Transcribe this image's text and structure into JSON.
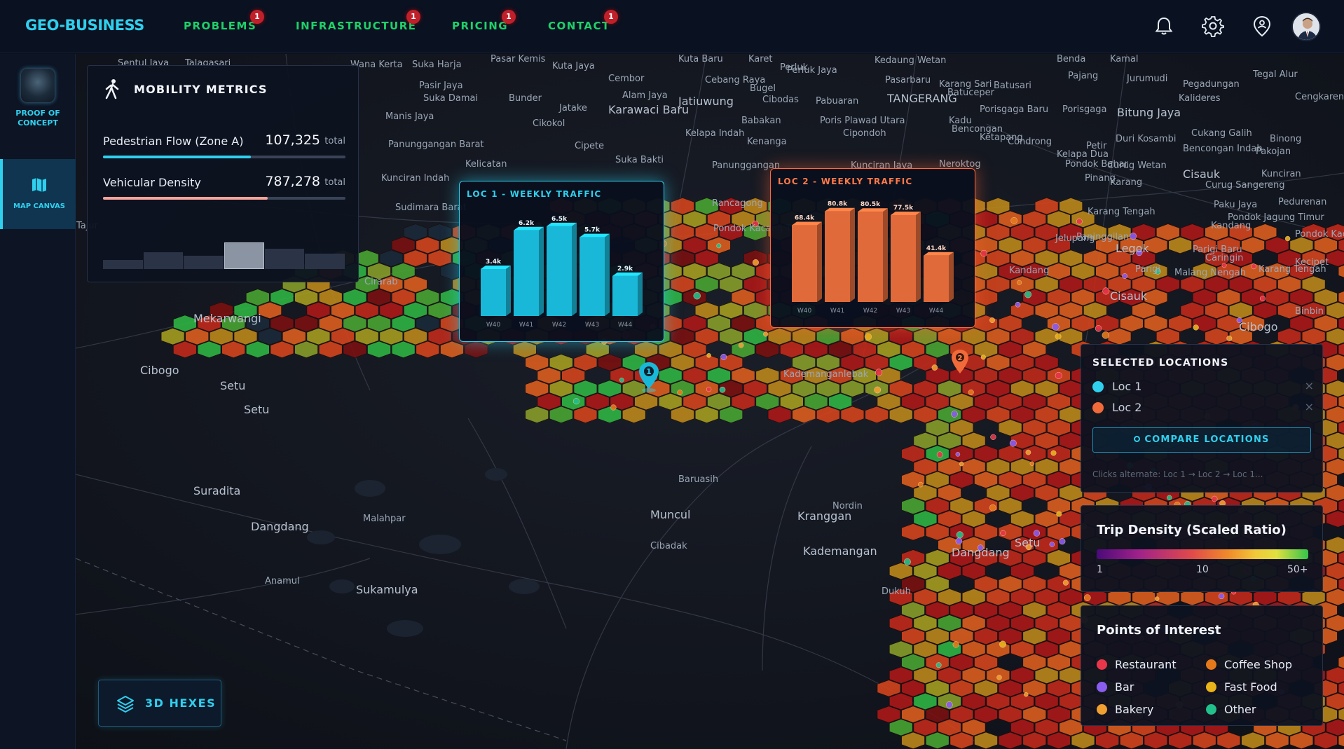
{
  "brand": "GEO-BUSINESS",
  "nav": [
    {
      "label": "PROBLEMS",
      "badge": "1"
    },
    {
      "label": "INFRASTRUCTURE",
      "badge": "1"
    },
    {
      "label": "PRICING",
      "badge": "1"
    },
    {
      "label": "CONTACT",
      "badge": "1"
    }
  ],
  "topbar_icons": [
    "bell-icon",
    "gear-icon",
    "location-user-icon"
  ],
  "sidebar": {
    "proof_of_concept": "PROOF OF CONCEPT",
    "map_canvas": "MAP CANVAS"
  },
  "mobility": {
    "title": "MOBILITY METRICS",
    "metrics": [
      {
        "label": "Pedestrian Flow (Zone A)",
        "value": "107,325",
        "unit": "total",
        "fill": 0.61,
        "color": "#2fd0ee"
      },
      {
        "label": "Vehicular Density",
        "value": "787,278",
        "unit": "total",
        "fill": 0.68,
        "color": "#f7a39a"
      }
    ],
    "spark_levels": [
      0.22,
      0.42,
      0.33,
      0.66,
      0.5,
      0.38
    ],
    "spark_highlight": 3
  },
  "loc1_chart": {
    "title": "LOC 1 - WEEKLY TRAFFIC",
    "categories": [
      "W40",
      "W41",
      "W42",
      "W43",
      "W44"
    ],
    "values": [
      3.4,
      6.2,
      6.5,
      5.7,
      2.9
    ],
    "labels": [
      "3.4k",
      "6.2k",
      "6.5k",
      "5.7k",
      "2.9k"
    ],
    "color": "#1ab8d8"
  },
  "loc2_chart": {
    "title": "LOC 2 - WEEKLY TRAFFIC",
    "categories": [
      "W40",
      "W41",
      "W42",
      "W43",
      "W44"
    ],
    "values": [
      68.4,
      80.8,
      80.5,
      77.5,
      41.4
    ],
    "labels": [
      "68.4k",
      "80.8k",
      "80.5k",
      "77.5k",
      "41.4k"
    ],
    "color": "#e06a3a"
  },
  "selected": {
    "title": "SELECTED LOCATIONS",
    "locations": [
      {
        "name": "Loc 1",
        "color": "#2fd0ee"
      },
      {
        "name": "Loc 2",
        "color": "#f06a3a"
      }
    ],
    "close_glyph": "×",
    "compare_label": "COMPARE LOCATIONS",
    "hint": "Clicks alternate: Loc 1 → Loc 2 → Loc 1..."
  },
  "density": {
    "title": "Trip Density (Scaled Ratio)",
    "ticks": [
      "1",
      "10",
      "50+"
    ]
  },
  "poi": {
    "title": "Points of Interest",
    "items": [
      {
        "name": "Restaurant",
        "color": "#e8364a"
      },
      {
        "name": "Coffee Shop",
        "color": "#e67a1a"
      },
      {
        "name": "Bar",
        "color": "#8a5cf0"
      },
      {
        "name": "Fast Food",
        "color": "#e8b41a"
      },
      {
        "name": "Bakery",
        "color": "#f0a030"
      },
      {
        "name": "Other",
        "color": "#22c08a"
      }
    ]
  },
  "hex_button": "3D HEXES",
  "pins": [
    "1",
    "2"
  ],
  "map_labels": [
    "Sentul Jaya",
    "Talagasari",
    "Pasar Kemis",
    "Suka Harja",
    "Wana Kerta",
    "Kuta Jaya",
    "Kuta Baru",
    "Karet",
    "Perluk",
    "Kedaung Wetan",
    "Benda",
    "Kamal",
    "Pasir Jaya",
    "Cembor",
    "Cebang Raya",
    "Perluk Jaya",
    "Pasarbaru",
    "Karang Sari",
    "Batusari",
    "Pajang",
    "Jurumudi",
    "Tegal Alur",
    "Pegadungan",
    "Kalideres",
    "Cengkareng",
    "Suka Damai",
    "Bunder",
    "Alam Jaya",
    "Jatiuwung",
    "Bugel",
    "Cibodas",
    "Pabuaran",
    "TANGERANG",
    "Batuceper",
    "Porisgaga Baru",
    "Porisgaga",
    "Bitung Jaya",
    "Manis Jaya",
    "Jatake",
    "Karawaci Baru",
    "Babakan",
    "Poris Plawad Utara",
    "Kadu",
    "Bencongan",
    "Cikokol",
    "Kelapa Indah",
    "Cipondoh",
    "Ketapang",
    "Duri Kosambi",
    "Cukang Galih",
    "Binong",
    "Panunggangan Barat",
    "Cipete",
    "Kenanga",
    "Condrong",
    "Petir",
    "Bencongan Indah",
    "Pakojan",
    "Suka Bakti",
    "Kelapa Dua",
    "Kelicatan",
    "Panunggangan",
    "Kunciran Jaya",
    "Neroktog",
    "Pondok Bahar",
    "Curug Wetan",
    "Cisauk",
    "Kunciran",
    "Kunciran Indah",
    "Pinang",
    "Karang",
    "Curug Sangereng",
    "Pedurenan",
    "Rancagong",
    "Paku Jaya",
    "Sudimara Barat",
    "Karang Tengah",
    "Kandang",
    "Pondok Jagung Timur",
    "Pondok Kacang Barat",
    "Tajur",
    "Pondok Kacang Timur",
    "Paninggilan",
    "Jelupang",
    "Legok",
    "Parigi Baru",
    "Caringin",
    "Parigi",
    "Malang Nengah",
    "Karang Tengah",
    "Kecipet",
    "Kandang",
    "Cirarab",
    "Cisauk",
    "Binbin",
    "Mekarwangi",
    "Cibogo",
    "Cibogo",
    "Setu",
    "Setu",
    "Kademanganlebak",
    "Kranggan",
    "Kademangan",
    "Dangdang",
    "Dukuh",
    "Suradita",
    "Baruasih",
    "Muncul",
    "Dangdang",
    "Malahpar",
    "Cibadak",
    "Nordin",
    "Setu",
    "Anamul",
    "Sukamulya"
  ]
}
